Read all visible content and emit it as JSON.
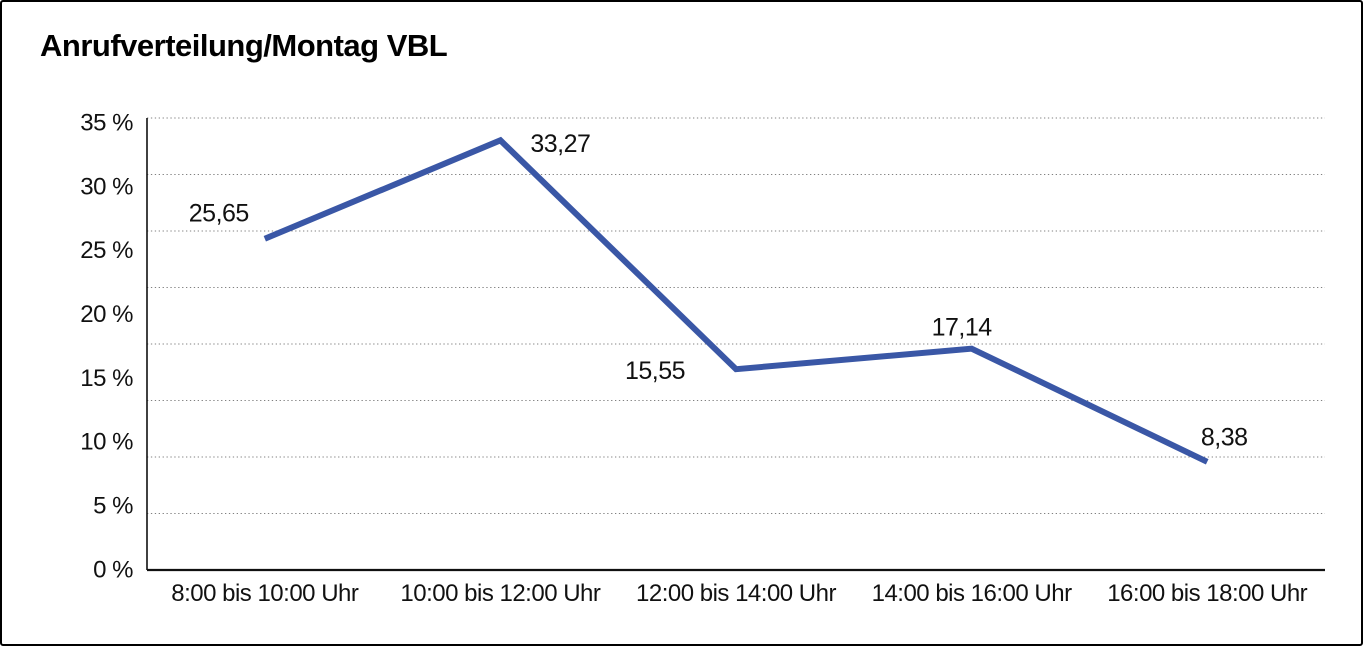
{
  "title": "Anrufverteilung/Montag VBL",
  "colors": {
    "line": "#3a57a6",
    "grid": "#808080",
    "axis": "#111111",
    "text": "#111111",
    "background": "#ffffff",
    "border": "#000000"
  },
  "chart_data": {
    "type": "line",
    "title": "Anrufverteilung/Montag VBL",
    "categories": [
      "8:00 bis 10:00 Uhr",
      "10:00 bis 12:00 Uhr",
      "12:00 bis 14:00 Uhr",
      "14:00 bis 16:00 Uhr",
      "16:00 bis 18:00 Uhr"
    ],
    "values": [
      25.65,
      33.27,
      15.55,
      17.14,
      8.38
    ],
    "value_labels": [
      "25,65",
      "33,27",
      "15,55",
      "17,14",
      "8,38"
    ],
    "y_tick_labels": [
      "35 %",
      "30 %",
      "25 %",
      "20 %",
      "15 %",
      "10 %",
      "5 %",
      "0 %"
    ],
    "y_ticks": [
      35,
      30,
      25,
      20,
      15,
      10,
      5,
      0
    ],
    "ylim": [
      0,
      35
    ],
    "xlabel": "",
    "ylabel": "",
    "unit": "%",
    "legend": "none",
    "grid": "dotted horizontal"
  }
}
